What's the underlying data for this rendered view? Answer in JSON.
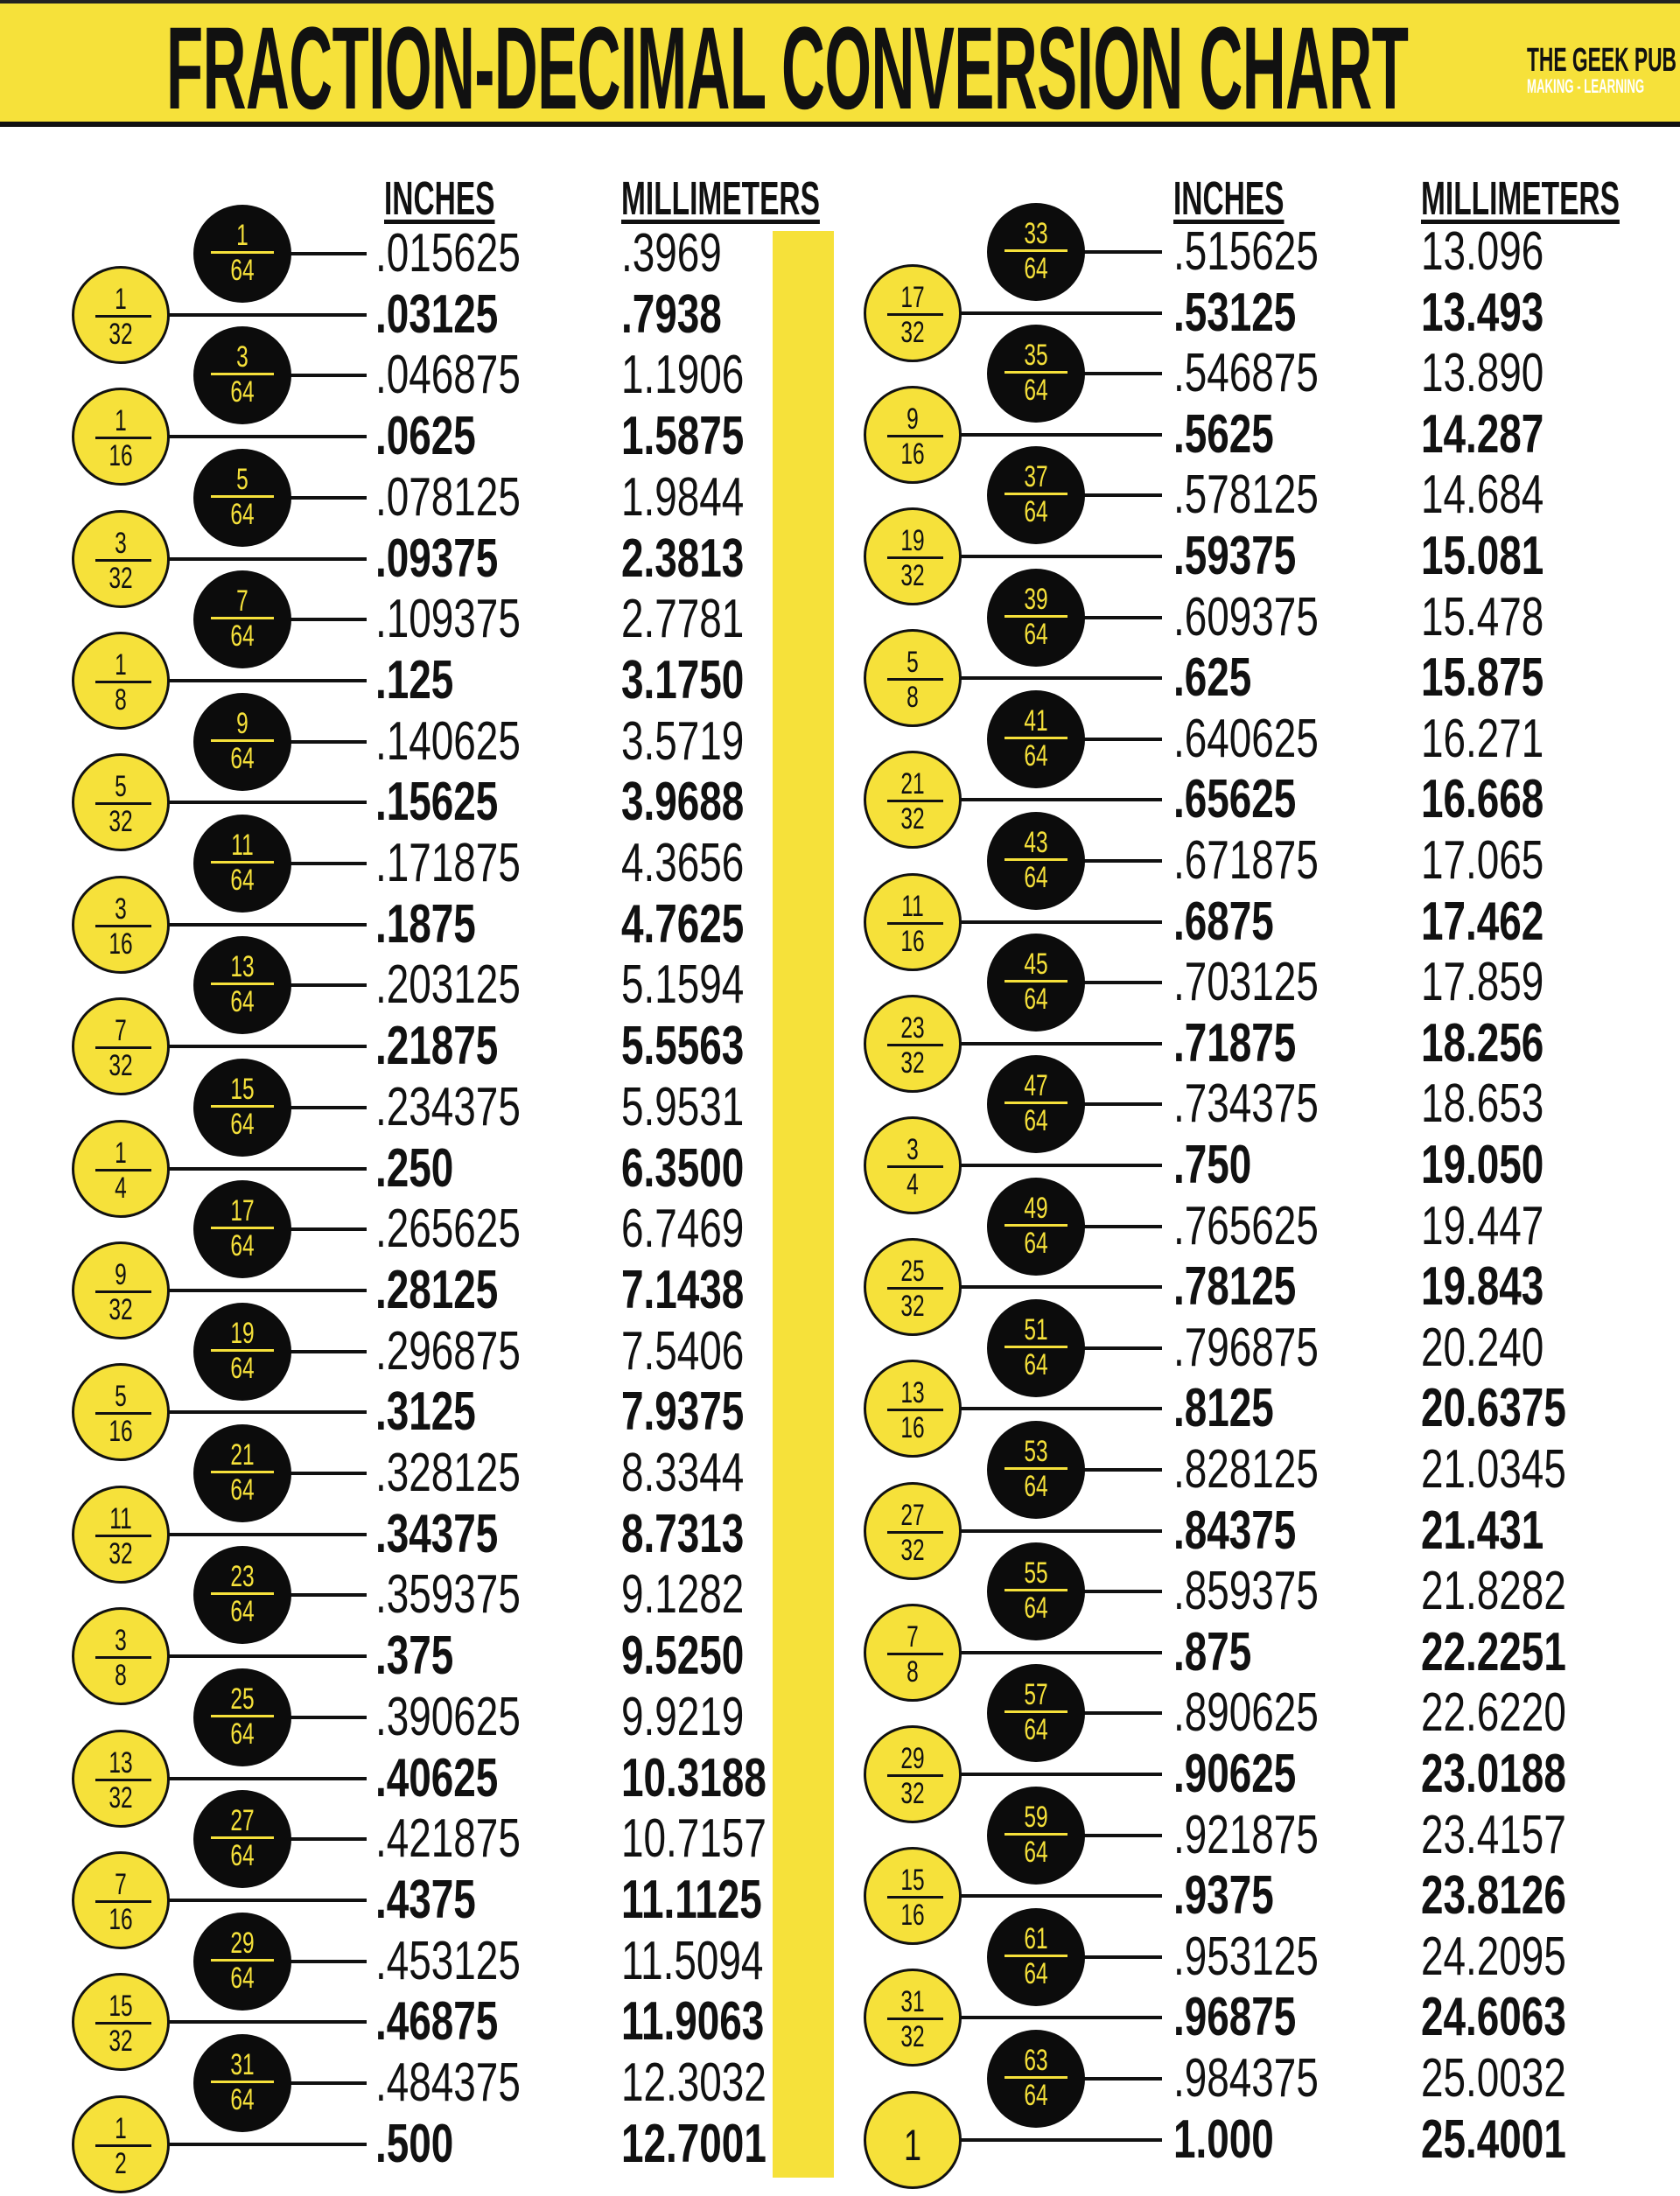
{
  "header": {
    "title": "FRACTION-DECIMAL CONVERSION CHART",
    "logo_name": "THE GEEK PUB",
    "logo_tagline": "MAKING - LEARNING"
  },
  "colors": {
    "accent_yellow": "#f6e13a",
    "black": "#0c0c0c"
  },
  "columns": {
    "left": {
      "inches": "INCHES",
      "mm": "MILLIMETERS"
    },
    "right": {
      "inches": "INCHES",
      "mm": "MILLIMETERS"
    }
  },
  "left_rows": [
    {
      "num": "1",
      "den": "64",
      "inches": ".015625",
      "mm": ".3969"
    },
    {
      "num": "1",
      "den": "32",
      "inches": ".03125",
      "mm": ".7938"
    },
    {
      "num": "3",
      "den": "64",
      "inches": ".046875",
      "mm": "1.1906"
    },
    {
      "num": "1",
      "den": "16",
      "inches": ".0625",
      "mm": "1.5875"
    },
    {
      "num": "5",
      "den": "64",
      "inches": ".078125",
      "mm": "1.9844"
    },
    {
      "num": "3",
      "den": "32",
      "inches": ".09375",
      "mm": "2.3813"
    },
    {
      "num": "7",
      "den": "64",
      "inches": ".109375",
      "mm": "2.7781"
    },
    {
      "num": "1",
      "den": "8",
      "inches": ".125",
      "mm": "3.1750"
    },
    {
      "num": "9",
      "den": "64",
      "inches": ".140625",
      "mm": "3.5719"
    },
    {
      "num": "5",
      "den": "32",
      "inches": ".15625",
      "mm": "3.9688"
    },
    {
      "num": "11",
      "den": "64",
      "inches": ".171875",
      "mm": "4.3656"
    },
    {
      "num": "3",
      "den": "16",
      "inches": ".1875",
      "mm": "4.7625"
    },
    {
      "num": "13",
      "den": "64",
      "inches": ".203125",
      "mm": "5.1594"
    },
    {
      "num": "7",
      "den": "32",
      "inches": ".21875",
      "mm": "5.5563"
    },
    {
      "num": "15",
      "den": "64",
      "inches": ".234375",
      "mm": "5.9531"
    },
    {
      "num": "1",
      "den": "4",
      "inches": ".250",
      "mm": "6.3500"
    },
    {
      "num": "17",
      "den": "64",
      "inches": ".265625",
      "mm": "6.7469"
    },
    {
      "num": "9",
      "den": "32",
      "inches": ".28125",
      "mm": "7.1438"
    },
    {
      "num": "19",
      "den": "64",
      "inches": ".296875",
      "mm": "7.5406"
    },
    {
      "num": "5",
      "den": "16",
      "inches": ".3125",
      "mm": "7.9375"
    },
    {
      "num": "21",
      "den": "64",
      "inches": ".328125",
      "mm": "8.3344"
    },
    {
      "num": "11",
      "den": "32",
      "inches": ".34375",
      "mm": "8.7313"
    },
    {
      "num": "23",
      "den": "64",
      "inches": ".359375",
      "mm": "9.1282"
    },
    {
      "num": "3",
      "den": "8",
      "inches": ".375",
      "mm": "9.5250"
    },
    {
      "num": "25",
      "den": "64",
      "inches": ".390625",
      "mm": "9.9219"
    },
    {
      "num": "13",
      "den": "32",
      "inches": ".40625",
      "mm": "10.3188"
    },
    {
      "num": "27",
      "den": "64",
      "inches": ".421875",
      "mm": "10.7157"
    },
    {
      "num": "7",
      "den": "16",
      "inches": ".4375",
      "mm": "11.1125"
    },
    {
      "num": "29",
      "den": "64",
      "inches": ".453125",
      "mm": "11.5094"
    },
    {
      "num": "15",
      "den": "32",
      "inches": ".46875",
      "mm": "11.9063"
    },
    {
      "num": "31",
      "den": "64",
      "inches": ".484375",
      "mm": "12.3032"
    },
    {
      "num": "1",
      "den": "2",
      "inches": ".500",
      "mm": "12.7001"
    }
  ],
  "right_rows": [
    {
      "num": "33",
      "den": "64",
      "inches": ".515625",
      "mm": "13.096"
    },
    {
      "num": "17",
      "den": "32",
      "inches": ".53125",
      "mm": "13.493"
    },
    {
      "num": "35",
      "den": "64",
      "inches": ".546875",
      "mm": "13.890"
    },
    {
      "num": "9",
      "den": "16",
      "inches": ".5625",
      "mm": "14.287"
    },
    {
      "num": "37",
      "den": "64",
      "inches": ".578125",
      "mm": "14.684"
    },
    {
      "num": "19",
      "den": "32",
      "inches": ".59375",
      "mm": "15.081"
    },
    {
      "num": "39",
      "den": "64",
      "inches": ".609375",
      "mm": "15.478"
    },
    {
      "num": "5",
      "den": "8",
      "inches": ".625",
      "mm": "15.875"
    },
    {
      "num": "41",
      "den": "64",
      "inches": ".640625",
      "mm": "16.271"
    },
    {
      "num": "21",
      "den": "32",
      "inches": ".65625",
      "mm": "16.668"
    },
    {
      "num": "43",
      "den": "64",
      "inches": ".671875",
      "mm": "17.065"
    },
    {
      "num": "11",
      "den": "16",
      "inches": ".6875",
      "mm": "17.462"
    },
    {
      "num": "45",
      "den": "64",
      "inches": ".703125",
      "mm": "17.859"
    },
    {
      "num": "23",
      "den": "32",
      "inches": ".71875",
      "mm": "18.256"
    },
    {
      "num": "47",
      "den": "64",
      "inches": ".734375",
      "mm": "18.653"
    },
    {
      "num": "3",
      "den": "4",
      "inches": ".750",
      "mm": "19.050"
    },
    {
      "num": "49",
      "den": "64",
      "inches": ".765625",
      "mm": "19.447"
    },
    {
      "num": "25",
      "den": "32",
      "inches": ".78125",
      "mm": "19.843"
    },
    {
      "num": "51",
      "den": "64",
      "inches": ".796875",
      "mm": "20.240"
    },
    {
      "num": "13",
      "den": "16",
      "inches": ".8125",
      "mm": "20.6375"
    },
    {
      "num": "53",
      "den": "64",
      "inches": ".828125",
      "mm": "21.0345"
    },
    {
      "num": "27",
      "den": "32",
      "inches": ".84375",
      "mm": "21.431"
    },
    {
      "num": "55",
      "den": "64",
      "inches": ".859375",
      "mm": "21.8282"
    },
    {
      "num": "7",
      "den": "8",
      "inches": ".875",
      "mm": "22.2251"
    },
    {
      "num": "57",
      "den": "64",
      "inches": ".890625",
      "mm": "22.6220"
    },
    {
      "num": "29",
      "den": "32",
      "inches": ".90625",
      "mm": "23.0188"
    },
    {
      "num": "59",
      "den": "64",
      "inches": ".921875",
      "mm": "23.4157"
    },
    {
      "num": "15",
      "den": "16",
      "inches": ".9375",
      "mm": "23.8126"
    },
    {
      "num": "61",
      "den": "64",
      "inches": ".953125",
      "mm": "24.2095"
    },
    {
      "num": "31",
      "den": "32",
      "inches": ".96875",
      "mm": "24.6063"
    },
    {
      "num": "63",
      "den": "64",
      "inches": ".984375",
      "mm": "25.0032"
    },
    {
      "num": "1",
      "den": "",
      "inches": "1.000",
      "mm": "25.4001"
    }
  ]
}
